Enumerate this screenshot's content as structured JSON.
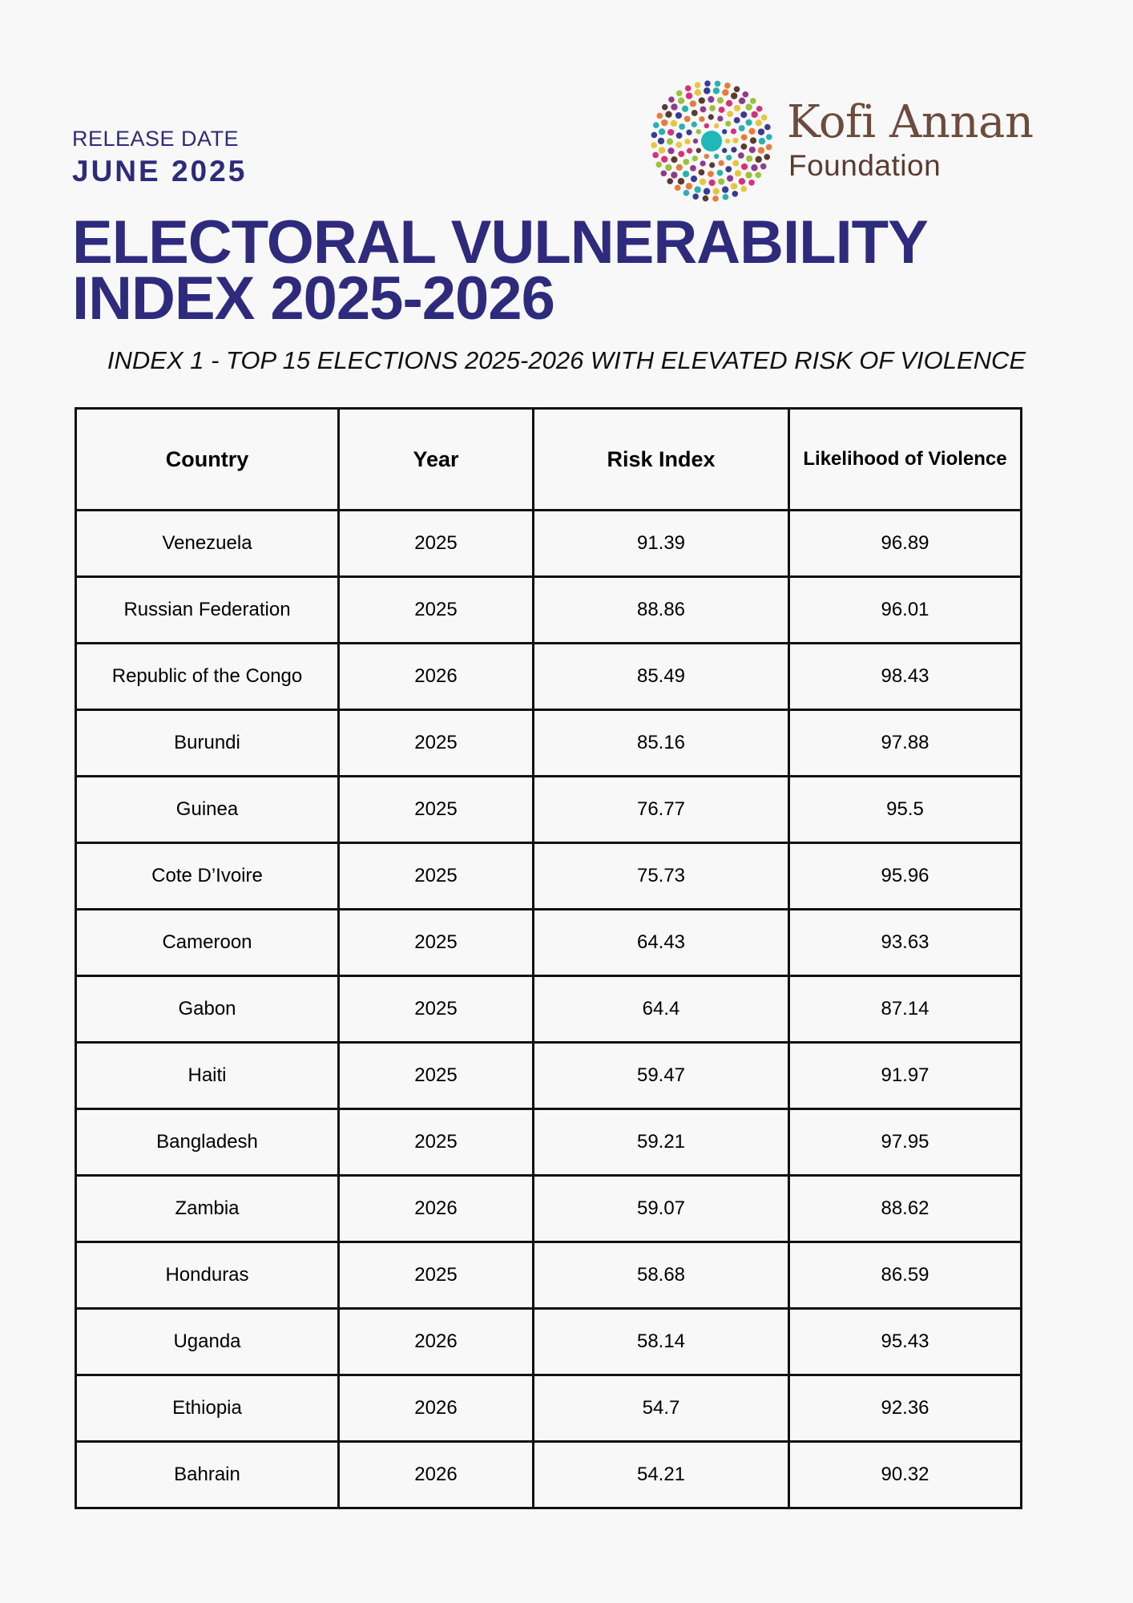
{
  "header": {
    "release_label": "RELEASE DATE",
    "release_date": "JUNE 2025",
    "title_line1": "ELECTORAL VULNERABILITY",
    "title_line2": "INDEX 2025-2026",
    "subtitle": "INDEX 1 - TOP 15 ELECTIONS 2025-2026 WITH ELEVATED RISK OF VIOLENCE"
  },
  "logo": {
    "name": "Kofi Annan",
    "sub": "Foundation",
    "dot_colors": [
      "#e8c53a",
      "#8e3a8e",
      "#2ab0b0",
      "#d8307a",
      "#5a3b2e",
      "#3a3a9a",
      "#9ac23a",
      "#e87a3a"
    ],
    "center_color": "#1fb8b8"
  },
  "table": {
    "headers": [
      "Country",
      "Year",
      "Risk Index",
      "Likelihood of Violence"
    ],
    "rows": [
      [
        "Venezuela",
        "2025",
        "91.39",
        "96.89"
      ],
      [
        "Russian Federation",
        "2025",
        "88.86",
        "96.01"
      ],
      [
        "Republic of the Congo",
        "2026",
        "85.49",
        "98.43"
      ],
      [
        "Burundi",
        "2025",
        "85.16",
        "97.88"
      ],
      [
        "Guinea",
        "2025",
        "76.77",
        "95.5"
      ],
      [
        "Cote D’Ivoire",
        "2025",
        "75.73",
        "95.96"
      ],
      [
        "Cameroon",
        "2025",
        "64.43",
        "93.63"
      ],
      [
        "Gabon",
        "2025",
        "64.4",
        "87.14"
      ],
      [
        "Haiti",
        "2025",
        "59.47",
        "91.97"
      ],
      [
        "Bangladesh",
        "2025",
        "59.21",
        "97.95"
      ],
      [
        "Zambia",
        "2026",
        "59.07",
        "88.62"
      ],
      [
        "Honduras",
        "2025",
        "58.68",
        "86.59"
      ],
      [
        "Uganda",
        "2026",
        "58.14",
        "95.43"
      ],
      [
        "Ethiopia",
        "2026",
        "54.7",
        "92.36"
      ],
      [
        "Bahrain",
        "2026",
        "54.21",
        "90.32"
      ]
    ]
  }
}
